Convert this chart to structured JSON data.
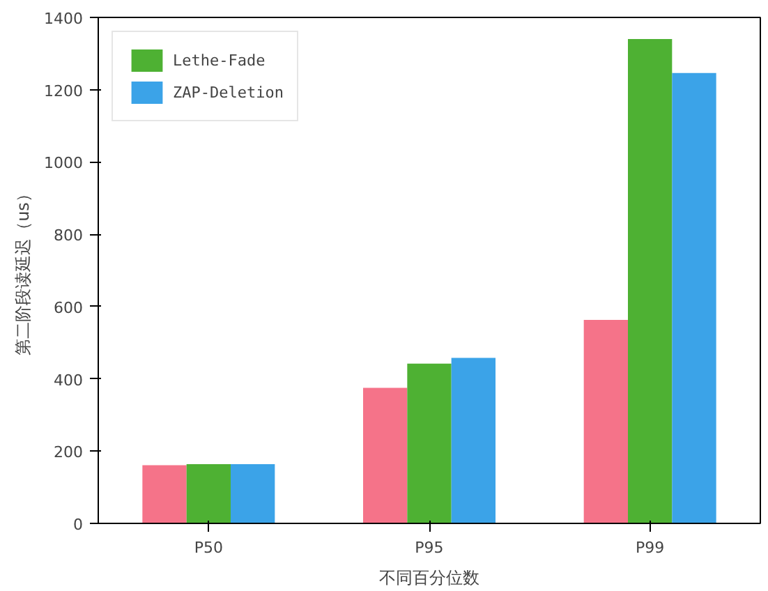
{
  "chart_data": {
    "type": "bar",
    "xlabel": "不同百分位数",
    "ylabel": "第二阶段读延迟（us）",
    "categories": [
      "P50",
      "P95",
      "P99"
    ],
    "series": [
      {
        "color": "#f57389",
        "values": [
          161,
          375,
          563
        ]
      },
      {
        "name": "Lethe-Fade",
        "color": "#4eb133",
        "values": [
          164,
          442,
          1340
        ]
      },
      {
        "name": "ZAP-Deletion",
        "color": "#3ba3e8",
        "values": [
          164,
          458,
          1246
        ]
      }
    ],
    "ylim": [
      0,
      1400
    ],
    "yticks": [
      0,
      200,
      400,
      600,
      800,
      1000,
      1200,
      1400
    ],
    "grid": false,
    "legend": "top left"
  }
}
